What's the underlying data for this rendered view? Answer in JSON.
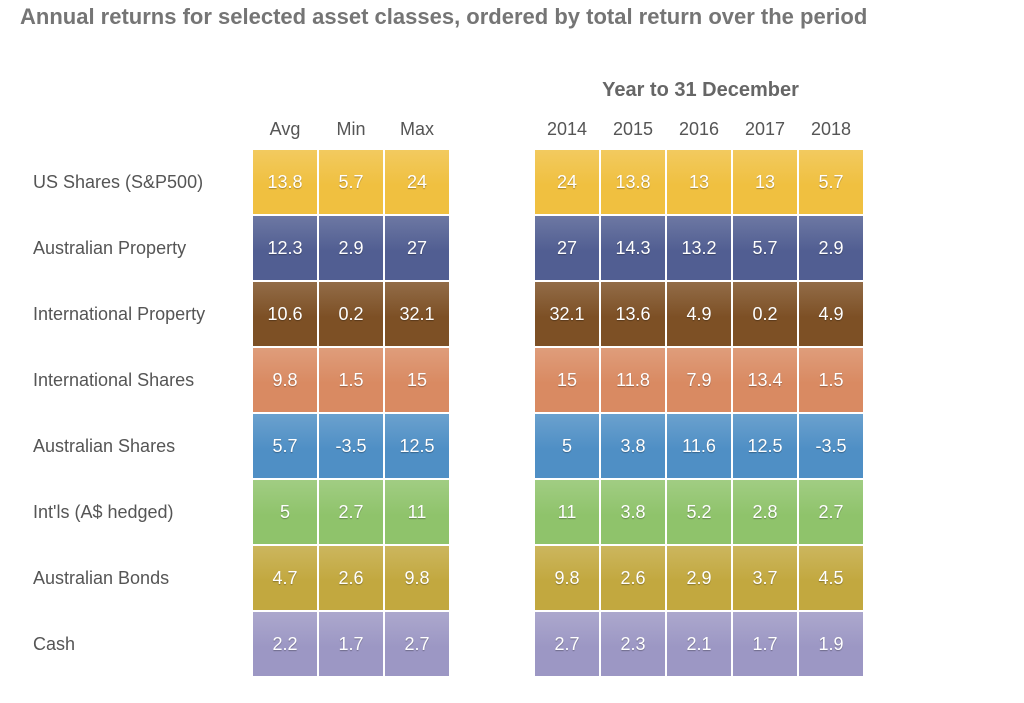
{
  "title": "Annual returns for selected asset classes, ordered by total return over the period",
  "chart_data": {
    "type": "table",
    "title": "Annual returns for selected asset classes, ordered by total return over the period",
    "summary_columns": [
      "Avg",
      "Min",
      "Max"
    ],
    "year_group_title": "Year to 31 December",
    "years": [
      "2014",
      "2015",
      "2016",
      "2017",
      "2018"
    ],
    "rows": [
      {
        "asset": "US Shares (S&P500)",
        "color": "#f0c040",
        "avg": "13.8",
        "min": "5.7",
        "max": "24",
        "years": [
          "24",
          "13.8",
          "13",
          "13",
          "5.7"
        ]
      },
      {
        "asset": "Australian Property",
        "color": "#515e92",
        "avg": "12.3",
        "min": "2.9",
        "max": "27",
        "years": [
          "27",
          "14.3",
          "13.2",
          "5.7",
          "2.9"
        ]
      },
      {
        "asset": "International Property",
        "color": "#7d5025",
        "avg": "10.6",
        "min": "0.2",
        "max": "32.1",
        "years": [
          "32.1",
          "13.6",
          "4.9",
          "0.2",
          "4.9"
        ]
      },
      {
        "asset": "International Shares",
        "color": "#d98a62",
        "avg": "9.8",
        "min": "1.5",
        "max": "15",
        "years": [
          "15",
          "11.8",
          "7.9",
          "13.4",
          "1.5"
        ]
      },
      {
        "asset": "Australian Shares",
        "color": "#4f8fc5",
        "avg": "5.7",
        "min": "-3.5",
        "max": "12.5",
        "years": [
          "5",
          "3.8",
          "11.6",
          "12.5",
          "-3.5"
        ]
      },
      {
        "asset": "Int'ls (A$ hedged)",
        "color": "#8fc36b",
        "avg": "5",
        "min": "2.7",
        "max": "11",
        "years": [
          "11",
          "3.8",
          "5.2",
          "2.8",
          "2.7"
        ]
      },
      {
        "asset": "Australian Bonds",
        "color": "#c2a83f",
        "avg": "4.7",
        "min": "2.6",
        "max": "9.8",
        "years": [
          "9.8",
          "2.6",
          "2.9",
          "3.7",
          "4.5"
        ]
      },
      {
        "asset": "Cash",
        "color": "#9c97c4",
        "avg": "2.2",
        "min": "1.7",
        "max": "2.7",
        "years": [
          "2.7",
          "2.3",
          "2.1",
          "1.7",
          "1.9"
        ]
      }
    ]
  }
}
